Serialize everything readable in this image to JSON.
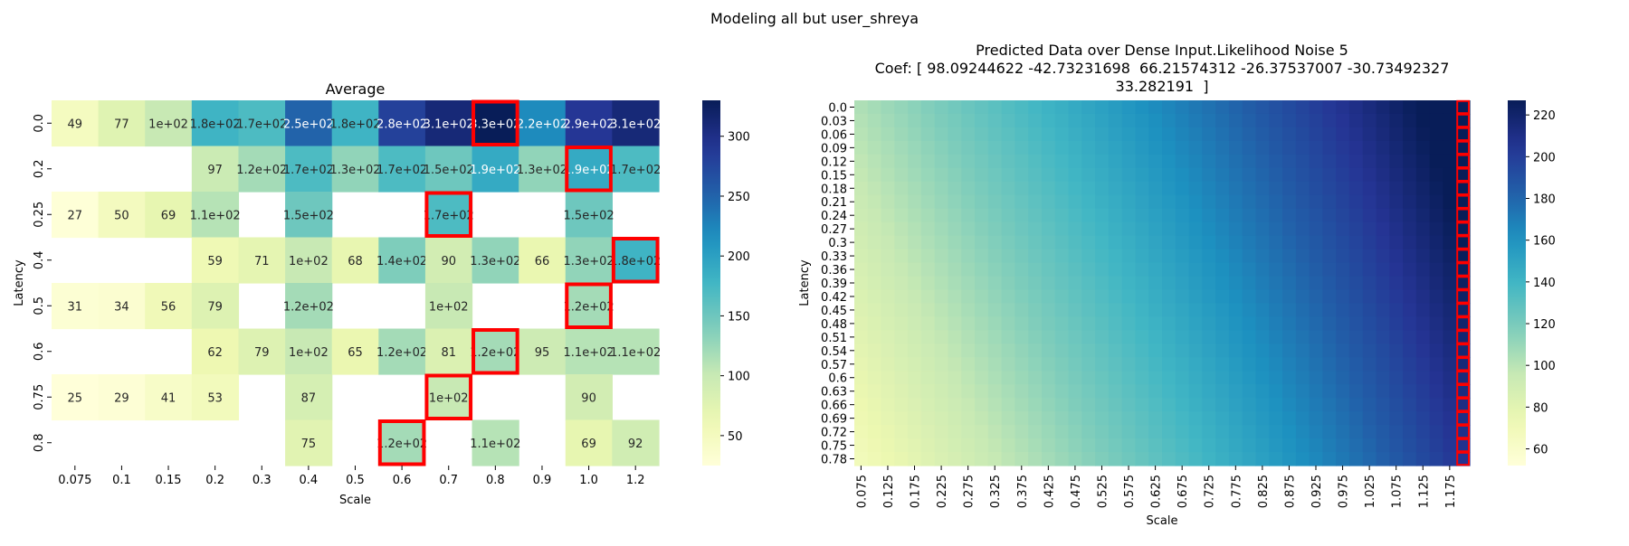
{
  "suptitle": "Modeling all but user_shreya",
  "chart_data": [
    {
      "type": "heatmap",
      "title": "Average",
      "xlabel": "Scale",
      "ylabel": "Latency",
      "x_categories": [
        "0.075",
        "0.1",
        "0.15",
        "0.2",
        "0.3",
        "0.4",
        "0.5",
        "0.6",
        "0.7",
        "0.8",
        "0.9",
        "1.0",
        "1.2"
      ],
      "y_categories": [
        "0.0",
        "0.2",
        "0.25",
        "0.4",
        "0.5",
        "0.6",
        "0.75",
        "0.8"
      ],
      "colormap": "YlGnBu",
      "vmin": 25,
      "vmax": 330,
      "colorbar_ticks": [
        50,
        100,
        150,
        200,
        250,
        300
      ],
      "values": [
        [
          49,
          77,
          100,
          180,
          170,
          250,
          180,
          280,
          310,
          330,
          220,
          290,
          310
        ],
        [
          null,
          null,
          null,
          97,
          120,
          170,
          130,
          170,
          150,
          190,
          130,
          190,
          170
        ],
        [
          27,
          50,
          69,
          110,
          null,
          150,
          null,
          null,
          170,
          null,
          null,
          150,
          null
        ],
        [
          null,
          null,
          null,
          59,
          71,
          100,
          68,
          140,
          90,
          130,
          66,
          130,
          180
        ],
        [
          31,
          34,
          56,
          79,
          null,
          120,
          null,
          null,
          100,
          null,
          null,
          120,
          null
        ],
        [
          null,
          null,
          null,
          62,
          79,
          100,
          65,
          120,
          81,
          120,
          95,
          110,
          110
        ],
        [
          25,
          29,
          41,
          53,
          null,
          87,
          null,
          null,
          100,
          null,
          null,
          90,
          null
        ],
        [
          null,
          null,
          null,
          null,
          null,
          75,
          null,
          120,
          null,
          110,
          null,
          69,
          92
        ]
      ],
      "annotations": [
        [
          "49",
          "77",
          "1e+02",
          "1.8e+02",
          "1.7e+02",
          "2.5e+02",
          "1.8e+02",
          "2.8e+02",
          "3.1e+02",
          "3.3e+02",
          "2.2e+02",
          "2.9e+02",
          "3.1e+02"
        ],
        [
          "",
          "",
          "",
          "97",
          "1.2e+02",
          "1.7e+02",
          "1.3e+02",
          "1.7e+02",
          "1.5e+02",
          "1.9e+02",
          "1.3e+02",
          "1.9e+02",
          "1.7e+02"
        ],
        [
          "27",
          "50",
          "69",
          "1.1e+02",
          "",
          "1.5e+02",
          "",
          "",
          "1.7e+02",
          "",
          "",
          "1.5e+02",
          ""
        ],
        [
          "",
          "",
          "",
          "59",
          "71",
          "1e+02",
          "68",
          "1.4e+02",
          "90",
          "1.3e+02",
          "66",
          "1.3e+02",
          "1.8e+02"
        ],
        [
          "31",
          "34",
          "56",
          "79",
          "",
          "1.2e+02",
          "",
          "",
          "1e+02",
          "",
          "",
          "1.2e+02",
          ""
        ],
        [
          "",
          "",
          "",
          "62",
          "79",
          "1e+02",
          "65",
          "1.2e+02",
          "81",
          "1.2e+02",
          "95",
          "1.1e+02",
          "1.1e+02"
        ],
        [
          "25",
          "29",
          "41",
          "53",
          "",
          "87",
          "",
          "",
          "1e+02",
          "",
          "",
          "90",
          ""
        ],
        [
          "",
          "",
          "",
          "",
          "",
          "75",
          "",
          "1.2e+02",
          "",
          "1.1e+02",
          "",
          "69",
          "92"
        ]
      ],
      "highlighted_cells": [
        [
          0,
          9
        ],
        [
          1,
          11
        ],
        [
          2,
          8
        ],
        [
          3,
          12
        ],
        [
          4,
          11
        ],
        [
          5,
          9
        ],
        [
          6,
          8
        ],
        [
          7,
          7
        ]
      ],
      "highlight_color": "#ff0000"
    },
    {
      "type": "heatmap",
      "title_lines": [
        "Predicted Data over Dense Input.Likelihood Noise 5",
        "Coef: [ 98.09244622 -42.73231698  66.21574312 -26.37537007 -30.73492327",
        "33.282191  ]"
      ],
      "xlabel": "Scale",
      "ylabel": "Latency",
      "x_tick_labels": [
        "0.075",
        "0.125",
        "0.175",
        "0.225",
        "0.275",
        "0.325",
        "0.375",
        "0.425",
        "0.475",
        "0.525",
        "0.575",
        "0.625",
        "0.675",
        "0.725",
        "0.775",
        "0.825",
        "0.875",
        "0.925",
        "0.975",
        "1.025",
        "1.075",
        "1.125",
        "1.175"
      ],
      "y_tick_labels": [
        "0.0",
        "0.03",
        "0.06",
        "0.09",
        "0.12",
        "0.15",
        "0.18",
        "0.21",
        "0.24",
        "0.27",
        "0.3",
        "0.33",
        "0.36",
        "0.39",
        "0.42",
        "0.45",
        "0.48",
        "0.51",
        "0.54",
        "0.57",
        "0.6",
        "0.63",
        "0.66",
        "0.69",
        "0.72",
        "0.75",
        "0.78"
      ],
      "x_range": [
        0.075,
        1.2
      ],
      "y_range": [
        0.0,
        0.8
      ],
      "colormap": "YlGnBu",
      "vmin": 52,
      "vmax": 227,
      "colorbar_ticks": [
        60,
        80,
        100,
        120,
        140,
        160,
        180,
        200,
        220
      ],
      "highlighted_column_x": 1.2,
      "highlight_color": "#ff0000"
    }
  ]
}
